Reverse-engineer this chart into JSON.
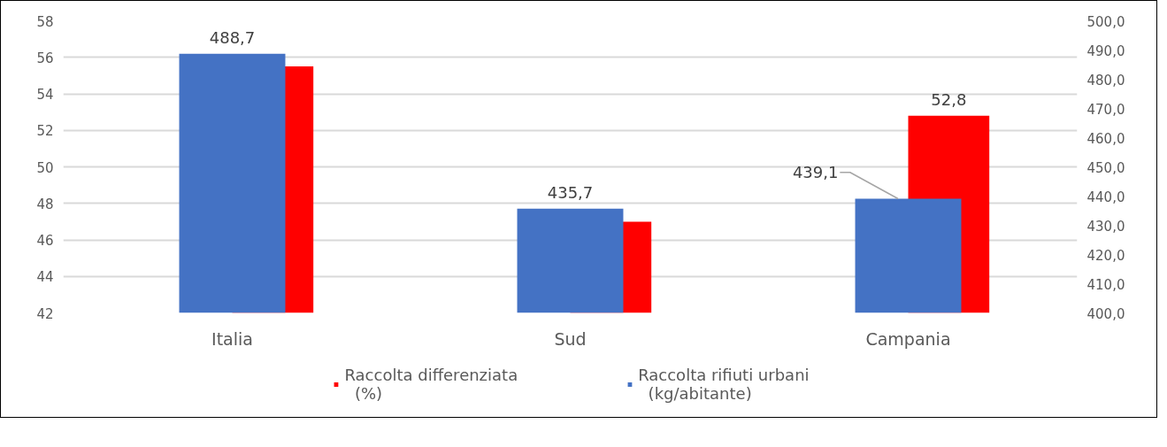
{
  "chart_data": {
    "type": "bar",
    "categories": [
      "Italia",
      "Sud",
      "Campania"
    ],
    "series": [
      {
        "name": "Raccolta differenziata (%)",
        "color": "#ff0000",
        "values": [
          55.5,
          47.0,
          52.8
        ],
        "value_labels": [
          null,
          null,
          "52,8"
        ]
      },
      {
        "name": "Raccolta rifiuti urbani (kg/abitante)",
        "color": "#4472c4",
        "axis": "y2",
        "values": [
          488.7,
          435.7,
          439.1
        ],
        "value_labels": [
          "488,7",
          "435,7",
          "439,1"
        ]
      }
    ],
    "ylim": [
      42,
      58
    ],
    "yticks": [
      42,
      44,
      46,
      48,
      50,
      52,
      54,
      56,
      58
    ],
    "y2lim": [
      400,
      500
    ],
    "y2ticks": [
      {
        "value": 400,
        "label": "400,0"
      },
      {
        "value": 410,
        "label": "410,0"
      },
      {
        "value": 420,
        "label": "420,0"
      },
      {
        "value": 430,
        "label": "430,0"
      },
      {
        "value": 440,
        "label": "440,0"
      },
      {
        "value": 450,
        "label": "450,0"
      },
      {
        "value": 460,
        "label": "460,0"
      },
      {
        "value": 470,
        "label": "470,0"
      },
      {
        "value": 480,
        "label": "480,0"
      },
      {
        "value": 490,
        "label": "490,0"
      },
      {
        "value": 500,
        "label": "500,0"
      }
    ],
    "grid": "y",
    "legend": "bottom"
  }
}
